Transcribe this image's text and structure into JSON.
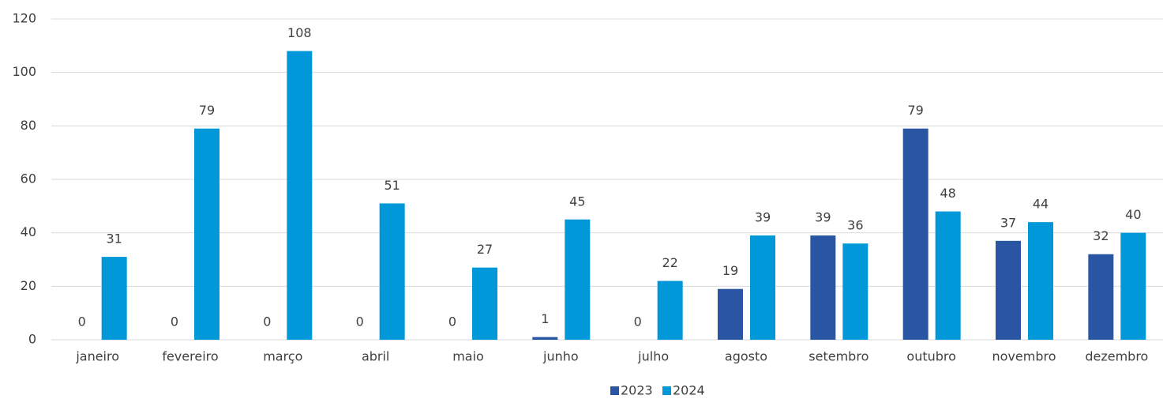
{
  "chart_data": {
    "type": "bar",
    "categories": [
      "janeiro",
      "fevereiro",
      "março",
      "abril",
      "maio",
      "junho",
      "julho",
      "agosto",
      "setembro",
      "outubro",
      "novembro",
      "dezembro"
    ],
    "series": [
      {
        "name": "2023",
        "color": "#2955a3",
        "values": [
          0,
          0,
          0,
          0,
          0,
          1,
          0,
          19,
          39,
          79,
          37,
          32
        ]
      },
      {
        "name": "2024",
        "color": "#0098d8",
        "values": [
          31,
          79,
          108,
          51,
          27,
          45,
          22,
          39,
          36,
          48,
          44,
          40
        ]
      }
    ],
    "ylim": [
      0,
      120
    ],
    "yticks": [
      0,
      20,
      40,
      60,
      80,
      100,
      120
    ],
    "grid": true,
    "legend": "bottom"
  }
}
